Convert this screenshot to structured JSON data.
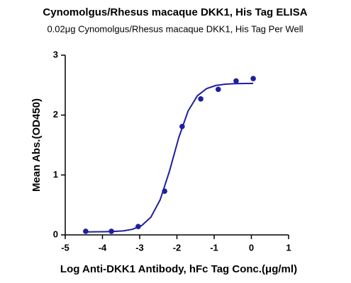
{
  "chart_data": {
    "type": "scatter",
    "title": "Cynomolgus/Rhesus macaque DKK1, His Tag ELISA",
    "subtitle": "0.02μg Cynomolgus/Rhesus macaque DKK1, His Tag Per Well",
    "x_label": "Log Anti-DKK1 Antibody, hFc Tag Conc.(μg/ml)",
    "y_label": "Mean Abs.(OD450)",
    "xlim": [
      -5,
      1
    ],
    "xticks": [
      -5,
      -4,
      -3,
      -2,
      -1,
      0,
      1
    ],
    "ylim": [
      0,
      3
    ],
    "yticks": [
      0,
      1,
      2,
      3
    ],
    "series": [
      {
        "type": "scatter",
        "color": "#1f1f9e",
        "x": [
          -4.45,
          -3.76,
          -3.04,
          -2.33,
          -1.86,
          -1.36,
          -0.89,
          -0.41,
          0.05
        ],
        "values": [
          0.06,
          0.06,
          0.14,
          0.73,
          1.81,
          2.27,
          2.43,
          2.57,
          2.61
        ]
      },
      {
        "type": "line",
        "color": "#1f1f9e",
        "x": [
          -4.45,
          -4.2,
          -3.95,
          -3.7,
          -3.45,
          -3.2,
          -2.95,
          -2.7,
          -2.45,
          -2.2,
          -1.95,
          -1.7,
          -1.45,
          -1.2,
          -0.95,
          -0.7,
          -0.45,
          -0.2,
          0.05
        ],
        "values": [
          0.05,
          0.051,
          0.053,
          0.057,
          0.067,
          0.092,
          0.154,
          0.295,
          0.586,
          1.064,
          1.625,
          2.068,
          2.323,
          2.443,
          2.495,
          2.516,
          2.524,
          2.528,
          2.529
        ]
      }
    ]
  }
}
